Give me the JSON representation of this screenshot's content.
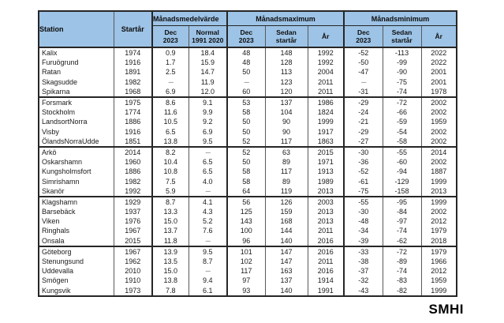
{
  "logo": {
    "text": "SMHI"
  },
  "table": {
    "header": {
      "station": "Station",
      "startyear": "Startår",
      "group_mean": "Månadsmedelvärde",
      "group_max": "Månadsmaximum",
      "group_min": "Månadsminimum",
      "sub": {
        "mean_dec": [
          "Dec",
          "2023"
        ],
        "mean_normal": [
          "Normal",
          "1991 2020"
        ],
        "max_dec": [
          "Dec",
          "2023"
        ],
        "max_since": [
          "Sedan",
          "startår"
        ],
        "max_year": [
          "År"
        ],
        "min_dec": [
          "Dec",
          "2023"
        ],
        "min_since": [
          "Sedan",
          "startår"
        ],
        "min_year": [
          "År"
        ]
      }
    },
    "colors": {
      "header_bg": "#9DC3E6",
      "border": "#595959",
      "border_thick": "#262626",
      "dash_text": "#7f7f7f",
      "text": "#1a1a1a"
    },
    "missing_marker": "---",
    "groups": [
      [
        [
          "Kalix",
          "1974",
          "0.9",
          "18.4",
          "48",
          "148",
          "1992",
          "-52",
          "-113",
          "2022"
        ],
        [
          "Furuögrund",
          "1916",
          "1.7",
          "15.9",
          "48",
          "128",
          "1992",
          "-50",
          "-99",
          "2022"
        ],
        [
          "Ratan",
          "1891",
          "2.5",
          "14.7",
          "50",
          "113",
          "2004",
          "-47",
          "-90",
          "2001"
        ],
        [
          "Skagsudde",
          "1982",
          "---",
          "11.9",
          "---",
          "123",
          "2011",
          "---",
          "-75",
          "2001"
        ],
        [
          "Spikarna",
          "1968",
          "6.9",
          "12.0",
          "60",
          "120",
          "2011",
          "-31",
          "-74",
          "1978"
        ]
      ],
      [
        [
          "Forsmark",
          "1975",
          "8.6",
          "9.1",
          "53",
          "137",
          "1986",
          "-29",
          "-72",
          "2002"
        ],
        [
          "Stockholm",
          "1774",
          "11.6",
          "9.9",
          "58",
          "104",
          "1824",
          "-24",
          "-66",
          "2002"
        ],
        [
          "LandsortNorra",
          "1886",
          "10.5",
          "9.2",
          "50",
          "90",
          "1999",
          "-21",
          "-59",
          "1959"
        ],
        [
          "Visby",
          "1916",
          "6.5",
          "6.9",
          "50",
          "90",
          "1917",
          "-29",
          "-54",
          "2002"
        ],
        [
          "ÖlandsNorraUdde",
          "1851",
          "13.8",
          "9.5",
          "52",
          "117",
          "1863",
          "-27",
          "-58",
          "2002"
        ]
      ],
      [
        [
          "Arkö",
          "2014",
          "8.2",
          "---",
          "52",
          "63",
          "2015",
          "-30",
          "-55",
          "2014"
        ],
        [
          "Oskarshamn",
          "1960",
          "10.4",
          "6.5",
          "50",
          "89",
          "1971",
          "-36",
          "-60",
          "2002"
        ],
        [
          "Kungsholmsfort",
          "1886",
          "10.8",
          "6.5",
          "58",
          "117",
          "1913",
          "-52",
          "-94",
          "1887"
        ],
        [
          "Simrishamn",
          "1982",
          "7.5",
          "4.0",
          "58",
          "89",
          "1989",
          "-61",
          "-129",
          "1999"
        ],
        [
          "Skanör",
          "1992",
          "5.9",
          "---",
          "64",
          "119",
          "2013",
          "-75",
          "-158",
          "2013"
        ]
      ],
      [
        [
          "Klagshamn",
          "1929",
          "8.7",
          "4.1",
          "56",
          "126",
          "2003",
          "-55",
          "-95",
          "1999"
        ],
        [
          "Barsebäck",
          "1937",
          "13.3",
          "4.3",
          "125",
          "159",
          "2013",
          "-30",
          "-84",
          "2002"
        ],
        [
          "Viken",
          "1976",
          "15.0",
          "5.2",
          "143",
          "168",
          "2013",
          "-48",
          "-97",
          "2012"
        ],
        [
          "Ringhals",
          "1967",
          "13.7",
          "7.6",
          "100",
          "144",
          "2011",
          "-34",
          "-74",
          "1979"
        ],
        [
          "Onsala",
          "2015",
          "11.8",
          "---",
          "96",
          "140",
          "2016",
          "-39",
          "-62",
          "2018"
        ]
      ],
      [
        [
          "Göteborg",
          "1967",
          "13.9",
          "9.5",
          "101",
          "147",
          "2016",
          "-33",
          "-72",
          "1979"
        ],
        [
          "Stenungsund",
          "1962",
          "13.5",
          "8.7",
          "102",
          "147",
          "2011",
          "-38",
          "-89",
          "1966"
        ],
        [
          "Uddevalla",
          "2010",
          "15.0",
          "---",
          "117",
          "163",
          "2016",
          "-37",
          "-74",
          "2012"
        ],
        [
          "Smögen",
          "1910",
          "13.8",
          "9.4",
          "97",
          "137",
          "1914",
          "-32",
          "-83",
          "1959"
        ],
        [
          "Kungsvik",
          "1973",
          "7.8",
          "6.1",
          "93",
          "140",
          "1991",
          "-43",
          "-82",
          "1999"
        ]
      ]
    ]
  }
}
